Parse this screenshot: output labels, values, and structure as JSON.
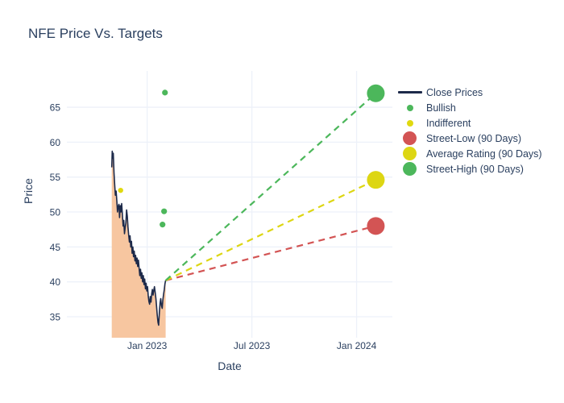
{
  "chart_data": {
    "type": "line",
    "title": "NFE Price Vs. Targets",
    "xlabel": "Date",
    "ylabel": "Price",
    "x_unit": "months_from_jan_2023",
    "xaxis": {
      "range": [
        -4.6,
        14.05
      ],
      "ticks": [
        {
          "label": "Jan 2023",
          "m": 0
        },
        {
          "label": "Jul 2023",
          "m": 6
        },
        {
          "label": "Jan 2024",
          "m": 12
        }
      ]
    },
    "yaxis": {
      "range": [
        32.0,
        70.2
      ],
      "ticks": [
        35,
        40,
        45,
        50,
        55,
        60,
        65
      ]
    },
    "grid": true,
    "legend_position": "right",
    "colors": {
      "background": "#ffffff",
      "grid": "#edf1f9",
      "close_line": "#1d2a4a",
      "close_fill": "#f7c6a0",
      "bullish": "#4cb75b",
      "indifferent": "#e0d90f",
      "street_low": "#d35454",
      "average_rating": "#ddd613",
      "street_high": "#4cb75b",
      "text": "#2a3f5f"
    },
    "close_prices": {
      "name": "Close Prices",
      "points": [
        [
          -2.03,
          56.4
        ],
        [
          -2.0,
          58.7
        ],
        [
          -1.97,
          57.7
        ],
        [
          -1.94,
          58.4
        ],
        [
          -1.9,
          55.6
        ],
        [
          -1.86,
          53.8
        ],
        [
          -1.82,
          52.4
        ],
        [
          -1.78,
          53.0
        ],
        [
          -1.74,
          51.6
        ],
        [
          -1.7,
          50.0
        ],
        [
          -1.66,
          50.8
        ],
        [
          -1.62,
          51.1
        ],
        [
          -1.58,
          49.2
        ],
        [
          -1.54,
          50.9
        ],
        [
          -1.5,
          50.0
        ],
        [
          -1.46,
          51.2
        ],
        [
          -1.42,
          49.6
        ],
        [
          -1.38,
          48.0
        ],
        [
          -1.34,
          48.8
        ],
        [
          -1.3,
          46.9
        ],
        [
          -1.26,
          47.8
        ],
        [
          -1.22,
          48.4
        ],
        [
          -1.18,
          50.3
        ],
        [
          -1.14,
          49.4
        ],
        [
          -1.1,
          47.9
        ],
        [
          -1.06,
          46.7
        ],
        [
          -1.02,
          45.7
        ],
        [
          -0.98,
          46.6
        ],
        [
          -0.94,
          45.0
        ],
        [
          -0.9,
          45.8
        ],
        [
          -0.86,
          44.1
        ],
        [
          -0.82,
          45.0
        ],
        [
          -0.78,
          43.6
        ],
        [
          -0.74,
          44.4
        ],
        [
          -0.7,
          43.0
        ],
        [
          -0.66,
          43.8
        ],
        [
          -0.62,
          42.6
        ],
        [
          -0.58,
          43.4
        ],
        [
          -0.54,
          42.2
        ],
        [
          -0.5,
          43.1
        ],
        [
          -0.46,
          41.9
        ],
        [
          -0.42,
          40.9
        ],
        [
          -0.38,
          41.8
        ],
        [
          -0.34,
          40.5
        ],
        [
          -0.3,
          41.3
        ],
        [
          -0.26,
          40.0
        ],
        [
          -0.22,
          40.9
        ],
        [
          -0.18,
          39.6
        ],
        [
          -0.14,
          40.4
        ],
        [
          -0.1,
          39.0
        ],
        [
          -0.06,
          39.8
        ],
        [
          -0.02,
          38.7
        ],
        [
          0.02,
          39.3
        ],
        [
          0.06,
          38.1
        ],
        [
          0.1,
          37.2
        ],
        [
          0.14,
          36.8
        ],
        [
          0.18,
          37.9
        ],
        [
          0.22,
          37.1
        ],
        [
          0.26,
          38.3
        ],
        [
          0.3,
          38.9
        ],
        [
          0.34,
          38.1
        ],
        [
          0.38,
          38.8
        ],
        [
          0.42,
          39.3
        ],
        [
          0.46,
          38.5
        ],
        [
          0.5,
          37.6
        ],
        [
          0.54,
          36.5
        ],
        [
          0.58,
          35.2
        ],
        [
          0.62,
          34.2
        ],
        [
          0.66,
          33.8
        ],
        [
          0.7,
          35.6
        ],
        [
          0.74,
          37.0
        ],
        [
          0.78,
          37.6
        ],
        [
          0.82,
          36.6
        ],
        [
          0.86,
          36.2
        ],
        [
          0.9,
          37.4
        ],
        [
          0.94,
          38.2
        ],
        [
          0.98,
          38.9
        ],
        [
          1.02,
          39.7
        ],
        [
          1.06,
          40.2
        ]
      ]
    },
    "ratings": [
      {
        "label": "Indifferent",
        "color": "#e0d90f",
        "m": -1.52,
        "price": 53.1,
        "r": 3.2
      },
      {
        "label": "Bullish",
        "color": "#4cb75b",
        "m": 0.88,
        "price": 48.2,
        "r": 3.6
      },
      {
        "label": "Bullish",
        "color": "#4cb75b",
        "m": 0.97,
        "price": 50.1,
        "r": 3.6
      },
      {
        "label": "Bullish",
        "color": "#4cb75b",
        "m": 1.02,
        "price": 67.1,
        "r": 3.6
      }
    ],
    "targets": [
      {
        "label": "Street-Low (90 Days)",
        "color": "#d35454",
        "start": {
          "m": 1.06,
          "price": 40.2
        },
        "end": {
          "m": 13.1,
          "price": 48.0
        }
      },
      {
        "label": "Average Rating (90 Days)",
        "color": "#ddd613",
        "start": {
          "m": 1.06,
          "price": 40.2
        },
        "end": {
          "m": 13.1,
          "price": 54.6
        }
      },
      {
        "label": "Street-High (90 Days)",
        "color": "#4cb75b",
        "start": {
          "m": 1.06,
          "price": 40.2
        },
        "end": {
          "m": 13.1,
          "price": 67.0
        }
      }
    ],
    "legend": [
      {
        "label": "Close Prices",
        "type": "line",
        "color": "#1d2a4a"
      },
      {
        "label": "Bullish",
        "type": "dot",
        "color": "#4cb75b"
      },
      {
        "label": "Indifferent",
        "type": "dot",
        "color": "#e0d90f"
      },
      {
        "label": "Street-Low (90 Days)",
        "type": "circle",
        "color": "#d35454"
      },
      {
        "label": "Average Rating (90 Days)",
        "type": "circle",
        "color": "#ddd613"
      },
      {
        "label": "Street-High (90 Days)",
        "type": "circle",
        "color": "#4cb75b"
      }
    ]
  }
}
